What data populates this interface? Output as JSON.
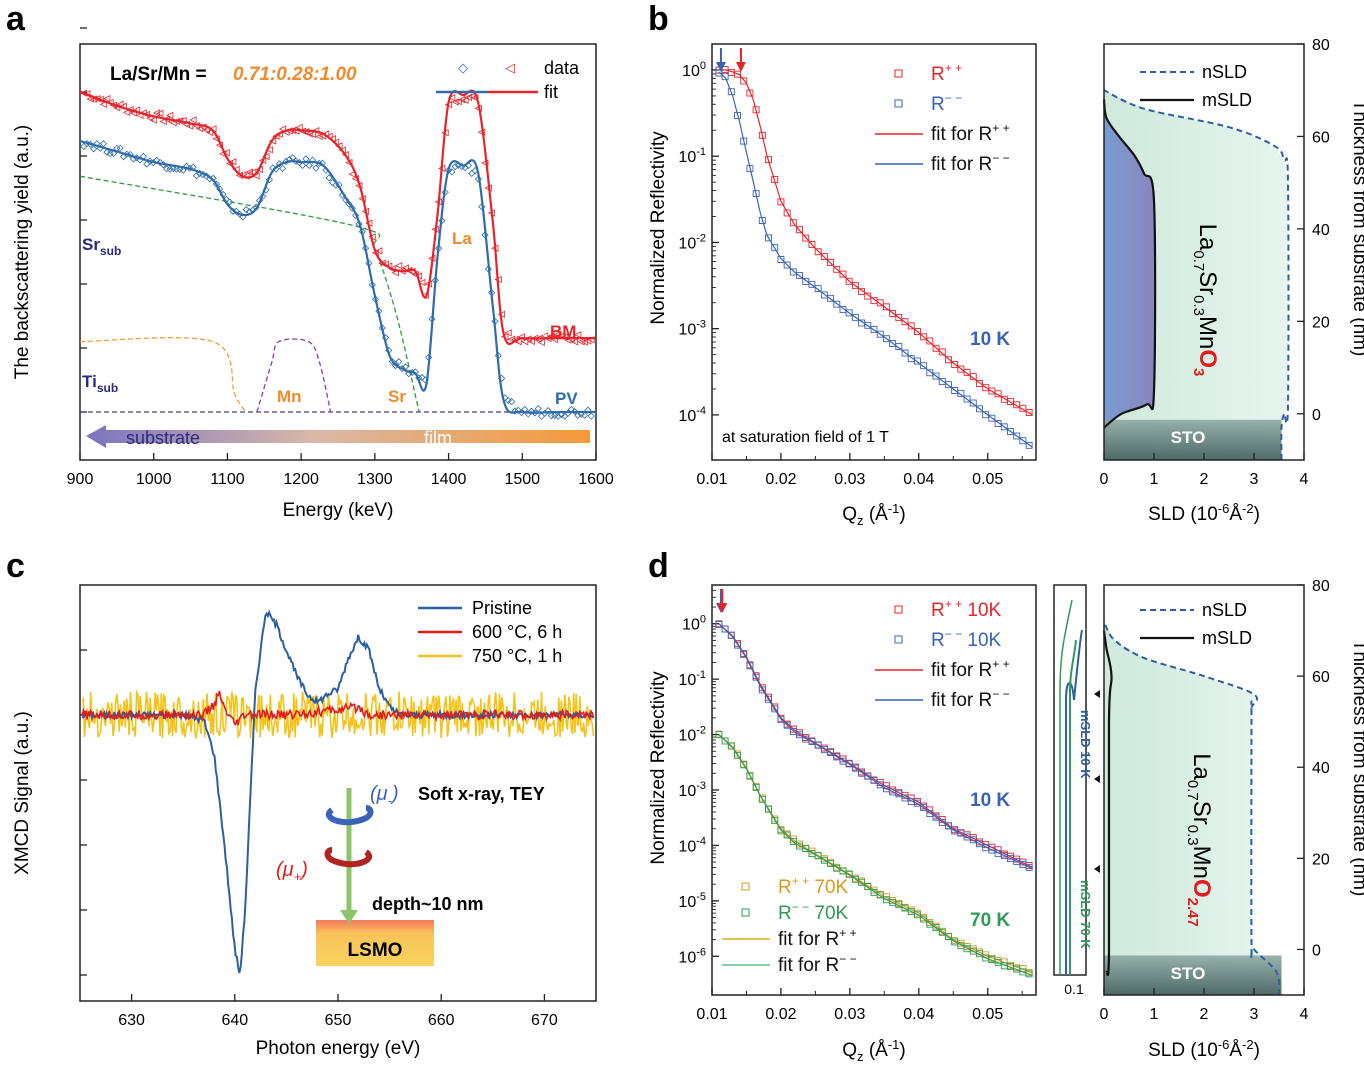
{
  "panels": [
    {
      "letter": "a"
    },
    {
      "letter": "b"
    },
    {
      "letter": "c"
    },
    {
      "letter": "d"
    }
  ],
  "chart_data": [
    {
      "id": "a",
      "type": "line",
      "xlabel": "Energy (keV)",
      "ylabel": "The backscattering yield (a.u.)",
      "xlim": [
        900,
        1600
      ],
      "xticks": [
        900,
        1000,
        1100,
        1200,
        1300,
        1400,
        1500,
        1600
      ],
      "ylim": [
        0,
        1
      ],
      "yticks_labeled": false,
      "title_prefix": "La/Sr/Mn =",
      "title_value": "0.71:0.28:1.00",
      "legend": {
        "position": "top-right",
        "data_label": "data",
        "fit_label": "fit"
      },
      "series": [
        {
          "name": "BM",
          "color": "#e8232b",
          "x": [
            900,
            950,
            1000,
            1050,
            1080,
            1100,
            1120,
            1140,
            1160,
            1180,
            1200,
            1230,
            1260,
            1280,
            1300,
            1320,
            1340,
            1355,
            1370,
            1385,
            1400,
            1420,
            1440,
            1460,
            1475,
            1500,
            1550,
            1600
          ],
          "y": [
            0.91,
            0.87,
            0.84,
            0.82,
            0.8,
            0.72,
            0.67,
            0.68,
            0.77,
            0.8,
            0.8,
            0.79,
            0.73,
            0.64,
            0.46,
            0.41,
            0.4,
            0.4,
            0.33,
            0.56,
            0.88,
            0.9,
            0.88,
            0.54,
            0.22,
            0.21,
            0.21,
            0.21
          ]
        },
        {
          "name": "PV",
          "color": "#2e6cad",
          "x": [
            900,
            950,
            1000,
            1050,
            1080,
            1100,
            1120,
            1140,
            1160,
            1180,
            1200,
            1230,
            1260,
            1280,
            1300,
            1320,
            1340,
            1355,
            1370,
            1385,
            1400,
            1420,
            1440,
            1460,
            1475,
            1500,
            1550,
            1600
          ],
          "y": [
            0.77,
            0.74,
            0.71,
            0.69,
            0.66,
            0.59,
            0.56,
            0.58,
            0.68,
            0.71,
            0.71,
            0.7,
            0.61,
            0.53,
            0.33,
            0.16,
            0.12,
            0.11,
            0.08,
            0.44,
            0.69,
            0.7,
            0.68,
            0.3,
            0.03,
            0.0,
            0.0,
            0.0
          ]
        }
      ],
      "components": [
        {
          "name": "Sr_sub",
          "color": "#2f9a3b",
          "x": [
            900,
            1270,
            1300,
            1330,
            1360
          ],
          "y": [
            0.67,
            0.53,
            0.46,
            0.27,
            0.0
          ]
        },
        {
          "name": "Ti_sub",
          "color": "#f29a3a",
          "x": [
            900,
            1080,
            1110,
            1125
          ],
          "y": [
            0.2,
            0.2,
            0.05,
            0.0
          ]
        },
        {
          "name": "Mn",
          "color": "#8a3fb0",
          "x": [
            1140,
            1160,
            1170,
            1210,
            1225,
            1240
          ],
          "y": [
            0.0,
            0.14,
            0.2,
            0.2,
            0.14,
            0.0
          ]
        }
      ],
      "labels": {
        "Sr_sub": {
          "main": "Sr",
          "sub": "sub"
        },
        "Ti_sub": {
          "main": "Ti",
          "sub": "sub"
        },
        "Mn": "Mn",
        "Sr": "Sr",
        "La": "La",
        "BM": "BM",
        "PV": "PV",
        "substrate": "substrate",
        "film": "film"
      }
    },
    {
      "id": "b",
      "type": "scatter",
      "xlabel_main": "Q",
      "xlabel_sub": "z",
      "xlabel_unit": " (Å",
      "xlabel_sup": "-1",
      "xlabel_end": ")",
      "ylabel": "Normalized Reflectivity",
      "xlim": [
        0.01,
        0.057
      ],
      "xticks": [
        0.01,
        0.02,
        0.03,
        0.04,
        0.05
      ],
      "yscale": "log",
      "ylim": [
        3e-05,
        2
      ],
      "yticks": [
        {
          "exp": "0"
        },
        {
          "exp": "-1"
        },
        {
          "exp": "-2"
        },
        {
          "exp": "-3"
        },
        {
          "exp": "-4"
        }
      ],
      "temperature_label": "10 K",
      "note": "at saturation field of 1 T",
      "legend": {
        "position": "top-right",
        "entries": [
          {
            "main": "R",
            "sup": "+ +",
            "color": "#e8232b"
          },
          {
            "main": "R",
            "sup": "− −",
            "color": "#3a63b8"
          },
          {
            "main": "fit for R",
            "sup": "+ +",
            "color": "#e8232b"
          },
          {
            "main": "fit for R",
            "sup": "− −",
            "color": "#3a63b8"
          }
        ]
      },
      "series": [
        {
          "name": "R++",
          "color": "#e8232b",
          "x": [
            0.011,
            0.012,
            0.013,
            0.014,
            0.015,
            0.016,
            0.017,
            0.018,
            0.02,
            0.022,
            0.025,
            0.03,
            0.035,
            0.04,
            0.045,
            0.05,
            0.0565
          ],
          "y": [
            1.0,
            1.0,
            0.95,
            0.88,
            0.7,
            0.45,
            0.22,
            0.1,
            0.03,
            0.016,
            0.0085,
            0.0035,
            0.0018,
            0.0009,
            0.0004,
            0.0002,
            0.0001
          ]
        },
        {
          "name": "R--",
          "color": "#3a63b8",
          "x": [
            0.011,
            0.012,
            0.013,
            0.014,
            0.015,
            0.016,
            0.017,
            0.018,
            0.02,
            0.022,
            0.025,
            0.03,
            0.035,
            0.04,
            0.045,
            0.05,
            0.0565
          ],
          "y": [
            0.95,
            0.8,
            0.5,
            0.25,
            0.11,
            0.05,
            0.022,
            0.012,
            0.0065,
            0.0045,
            0.003,
            0.0015,
            0.0008,
            0.0004,
            0.0002,
            0.0001,
            4.2e-05
          ]
        }
      ],
      "arrows": [
        {
          "x": 0.0113,
          "color": "#3a63b8"
        },
        {
          "x": 0.0142,
          "color": "#e8232b"
        }
      ]
    },
    {
      "id": "b-sld",
      "type": "area",
      "xlabel": "SLD (10",
      "xlabel_sup": "-6",
      "xlabel_unit": "Å",
      "xlabel_sup2": "-2",
      "xlabel_end": ")",
      "ylabel": "Thickness from substrate (nm)",
      "xlim": [
        0,
        4
      ],
      "xticks": [
        0,
        1,
        2,
        3,
        4
      ],
      "ylim": [
        -10,
        80
      ],
      "yticks": [
        0,
        20,
        40,
        60,
        80
      ],
      "legend": {
        "position": "top-right",
        "entries": [
          "nSLD",
          "mSLD"
        ]
      },
      "nSLD": {
        "thickness": [
          -10,
          -3,
          0,
          2,
          50,
          55,
          58,
          62,
          66,
          70
        ],
        "sld": [
          3.55,
          3.55,
          3.6,
          3.68,
          3.68,
          3.6,
          3.4,
          2.5,
          0.8,
          0.0
        ]
      },
      "mSLD": {
        "thickness": [
          -3,
          0,
          2,
          5,
          46,
          52,
          56,
          60,
          64,
          68
        ],
        "sld": [
          0.0,
          0.35,
          0.85,
          1.0,
          1.0,
          0.8,
          0.6,
          0.3,
          0.05,
          0.0
        ]
      },
      "film_label": {
        "parts": [
          [
            "La",
            ""
          ],
          [
            "0.7",
            "sub"
          ],
          [
            "Sr",
            ""
          ],
          [
            "0.3",
            "sub"
          ],
          [
            "Mn",
            ""
          ],
          [
            "O",
            "red"
          ],
          [
            "3",
            "redsub"
          ]
        ]
      },
      "substrate_label": "STO"
    },
    {
      "id": "c",
      "type": "line",
      "xlabel": "Photon energy (eV)",
      "ylabel": "XMCD Signal (a.u.)",
      "xlim": [
        625,
        675
      ],
      "xticks": [
        630,
        640,
        650,
        660,
        670
      ],
      "ylim": [
        -1.1,
        0.5
      ],
      "yticks_labeled": false,
      "legend": {
        "position": "top-right"
      },
      "series": [
        {
          "name": "Pristine",
          "color": "#2e5fa0",
          "x": [
            625,
            635,
            637,
            638,
            639,
            640,
            640.5,
            641,
            642,
            643,
            644,
            645,
            646,
            647,
            648,
            649,
            650,
            651,
            652,
            653,
            654,
            655,
            656,
            660,
            675
          ],
          "y": [
            0,
            0,
            -0.02,
            -0.15,
            -0.5,
            -0.9,
            -1.0,
            -0.75,
            0.1,
            0.4,
            0.35,
            0.25,
            0.15,
            0.08,
            0.05,
            0.08,
            0.1,
            0.22,
            0.3,
            0.25,
            0.1,
            0.03,
            0.0,
            0.0,
            0.0
          ]
        },
        {
          "name": "600 °C, 6 h",
          "color": "#e21b1b",
          "x": [
            625,
            637,
            638,
            638.5,
            639,
            640,
            641,
            645,
            650,
            652,
            653,
            675
          ],
          "y": [
            0,
            0,
            0.04,
            0.08,
            0.02,
            -0.04,
            0.0,
            0.0,
            0.02,
            0.03,
            0.0,
            0.0
          ]
        },
        {
          "name": "750 °C, 1 h",
          "color": "#f4c31a",
          "x": [
            625,
            675
          ],
          "y": [
            0,
            0
          ]
        }
      ],
      "inset": {
        "mu_minus": {
          "open": "(",
          "main": "μ",
          "sub": "-",
          "close": ")"
        },
        "mu_plus": {
          "open": "(",
          "main": "μ",
          "sub": "+",
          "close": ")"
        },
        "soft_label": "Soft x-ray, TEY",
        "depth_label": "depth~10 nm",
        "sample_label": "LSMO"
      }
    },
    {
      "id": "d",
      "type": "scatter",
      "xlabel_main": "Q",
      "xlabel_sub": "z",
      "xlabel_unit": " (Å",
      "xlabel_sup": "-1",
      "xlabel_end": ")",
      "ylabel": "Normalized Reflectivity",
      "xlim": [
        0.01,
        0.057
      ],
      "xticks": [
        0.01,
        0.02,
        0.03,
        0.04,
        0.05
      ],
      "yscale": "log",
      "ylim": [
        2e-07,
        5
      ],
      "yticks": [
        {
          "exp": "0"
        },
        {
          "exp": "-1"
        },
        {
          "exp": "-2"
        },
        {
          "exp": "-3"
        },
        {
          "exp": "-4"
        },
        {
          "exp": "-5"
        },
        {
          "exp": "-6"
        }
      ],
      "temperature_labels": {
        "t10": "10 K",
        "t70": "70 K"
      },
      "legend_top": [
        {
          "main": "R",
          "sup": "+ +",
          "tail": " 10K",
          "color": "#e8232b"
        },
        {
          "main": "R",
          "sup": "− −",
          "tail": " 10K",
          "color": "#3a63b8"
        },
        {
          "main": "fit for R",
          "sup": "+ +",
          "tail": "",
          "color": "#e8232b"
        },
        {
          "main": "fit for R",
          "sup": "− −",
          "tail": "",
          "color": "#3a63b8"
        }
      ],
      "legend_bottom": [
        {
          "main": "R",
          "sup": "+ +",
          "tail": " 70K",
          "color": "#d99a1e"
        },
        {
          "main": "R",
          "sup": "− −",
          "tail": " 70K",
          "color": "#2e9b57"
        },
        {
          "main": "fit for R",
          "sup": "+ +",
          "tail": "",
          "color": "#d4b21a"
        },
        {
          "main": "fit for R",
          "sup": "− −",
          "tail": "",
          "color": "#5fbf8e"
        }
      ],
      "series": [
        {
          "name": "R++ 10K",
          "color": "#e8232b",
          "x": [
            0.011,
            0.013,
            0.015,
            0.017,
            0.02,
            0.022,
            0.025,
            0.03,
            0.035,
            0.04,
            0.045,
            0.05,
            0.0565
          ],
          "y": [
            1.0,
            0.6,
            0.25,
            0.08,
            0.02,
            0.012,
            0.007,
            0.003,
            0.0012,
            0.0006,
            0.0002,
            0.0001,
            4e-05
          ]
        },
        {
          "name": "R-- 10K",
          "color": "#3a63b8",
          "x": [
            0.011,
            0.013,
            0.015,
            0.017,
            0.02,
            0.022,
            0.025,
            0.03,
            0.035,
            0.04,
            0.045,
            0.05,
            0.0565
          ],
          "y": [
            1.0,
            0.58,
            0.24,
            0.075,
            0.019,
            0.011,
            0.0068,
            0.0029,
            0.0011,
            0.00055,
            0.00019,
            9e-05,
            3.8e-05
          ]
        },
        {
          "name": "R++ 70K",
          "color": "#d99a1e",
          "x": [
            0.011,
            0.013,
            0.015,
            0.017,
            0.02,
            0.022,
            0.025,
            0.03,
            0.035,
            0.04,
            0.045,
            0.05,
            0.0565
          ],
          "y": [
            0.01,
            0.006,
            0.0025,
            0.0008,
            0.0002,
            0.00012,
            7e-05,
            3e-05,
            1.2e-05,
            6e-06,
            2e-06,
            1e-06,
            5e-07
          ]
        },
        {
          "name": "R-- 70K",
          "color": "#2e9b57",
          "x": [
            0.011,
            0.013,
            0.015,
            0.017,
            0.02,
            0.022,
            0.025,
            0.03,
            0.035,
            0.04,
            0.045,
            0.05,
            0.0565
          ],
          "y": [
            0.01,
            0.0058,
            0.0024,
            0.00078,
            0.00019,
            0.00011,
            6.8e-05,
            2.9e-05,
            1.1e-05,
            5.5e-06,
            1.9e-06,
            9e-07,
            4.5e-07
          ]
        }
      ],
      "arrows": [
        {
          "x": 0.0113,
          "color": "#3a63b8"
        },
        {
          "x": 0.0115,
          "color": "#e8232b"
        }
      ]
    },
    {
      "id": "d-msld-inset",
      "type": "line",
      "xtick_label": "0.1",
      "series": [
        {
          "name": "mSLD 10 K",
          "color": "#2e5fa0",
          "label_main": "mSLD",
          "label_t": "10 K"
        },
        {
          "name": "mSLD 70 K",
          "color": "#2e9b57",
          "label_main": "mSLD",
          "label_t": "70 K"
        }
      ]
    },
    {
      "id": "d-sld",
      "type": "area",
      "xlabel": "SLD (10",
      "xlabel_sup": "-6",
      "xlabel_unit": "Å",
      "xlabel_sup2": "-2",
      "xlabel_end": ")",
      "ylabel": "Thickness from substrate (nm)",
      "xlim": [
        0,
        4
      ],
      "xticks": [
        0,
        1,
        2,
        3,
        4
      ],
      "ylim": [
        -10,
        80
      ],
      "yticks": [
        0,
        20,
        40,
        60,
        80
      ],
      "legend": {
        "position": "top-right",
        "entries": [
          "nSLD",
          "mSLD"
        ]
      },
      "nSLD": {
        "thickness": [
          -10,
          -5,
          0,
          2,
          50,
          53,
          56,
          60,
          64,
          68,
          72
        ],
        "sld": [
          3.5,
          3.45,
          3.0,
          2.95,
          2.95,
          2.95,
          3.0,
          2.0,
          0.8,
          0.2,
          0.0
        ]
      },
      "mSLD": {
        "thickness": [
          -5,
          0,
          50,
          60,
          66,
          70
        ],
        "sld": [
          0.05,
          0.1,
          0.1,
          0.15,
          0.05,
          0.0
        ]
      },
      "film_label": {
        "parts": [
          [
            "La",
            ""
          ],
          [
            "0.7",
            "sub"
          ],
          [
            "Sr",
            ""
          ],
          [
            "0.3",
            "sub"
          ],
          [
            "Mn",
            ""
          ],
          [
            "O",
            "red"
          ],
          [
            "2.47",
            "redsub"
          ]
        ]
      },
      "substrate_label": "STO"
    }
  ]
}
